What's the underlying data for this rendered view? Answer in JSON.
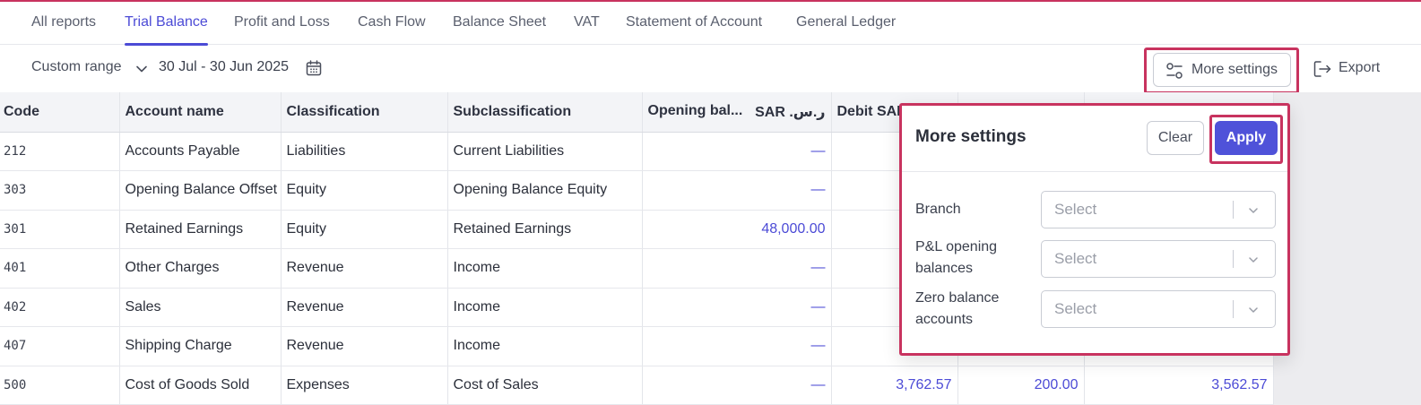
{
  "tabs": [
    "All reports",
    "Trial Balance",
    "Profit and Loss",
    "Cash Flow",
    "Balance Sheet",
    "VAT",
    "Statement of Account",
    "General Ledger"
  ],
  "active_tab": "Trial Balance",
  "toolbar": {
    "range_label": "Custom range",
    "date_range": "30 Jul - 30 Jun 2025",
    "more_settings_label": "More settings",
    "export_label": "Export"
  },
  "table": {
    "headers": {
      "code": "Code",
      "account_name": "Account name",
      "classification": "Classification",
      "subclassification": "Subclassification",
      "opening_balance": "Opening bal...",
      "opening_currency": "SAR .ر.س",
      "debit": "Debit SAR",
      "credit": "",
      "closing": ""
    },
    "rows": [
      {
        "code": "212",
        "account_name": "Accounts Payable",
        "classification": "Liabilities",
        "subclassification": "Current Liabilities",
        "opening_balance": "—",
        "debit": "",
        "credit": "",
        "closing": ""
      },
      {
        "code": "303",
        "account_name": "Opening Balance Offset",
        "classification": "Equity",
        "subclassification": "Opening Balance Equity",
        "opening_balance": "—",
        "debit": "",
        "credit": "",
        "closing": ""
      },
      {
        "code": "301",
        "account_name": "Retained Earnings",
        "classification": "Equity",
        "subclassification": "Retained Earnings",
        "opening_balance": "48,000.00",
        "debit": "",
        "credit": "",
        "closing": ""
      },
      {
        "code": "401",
        "account_name": "Other Charges",
        "classification": "Revenue",
        "subclassification": "Income",
        "opening_balance": "—",
        "debit": "",
        "credit": "",
        "closing": ""
      },
      {
        "code": "402",
        "account_name": "Sales",
        "classification": "Revenue",
        "subclassification": "Income",
        "opening_balance": "—",
        "debit": "",
        "credit": "",
        "closing": ""
      },
      {
        "code": "407",
        "account_name": "Shipping Charge",
        "classification": "Revenue",
        "subclassification": "Income",
        "opening_balance": "—",
        "debit": "",
        "credit": "",
        "closing": ""
      },
      {
        "code": "500",
        "account_name": "Cost of Goods Sold",
        "classification": "Expenses",
        "subclassification": "Cost of Sales",
        "opening_balance": "—",
        "debit": "3,762.57",
        "credit": "200.00",
        "closing": "3,562.57"
      }
    ]
  },
  "popover": {
    "title": "More settings",
    "clear_label": "Clear",
    "apply_label": "Apply",
    "fields": [
      {
        "label": "Branch",
        "placeholder": "Select"
      },
      {
        "label": "P&L opening balances",
        "placeholder": "Select"
      },
      {
        "label": "Zero balance accounts",
        "placeholder": "Select"
      }
    ]
  },
  "colors": {
    "accent": "#4c4bd6",
    "highlight": "#c8335f",
    "apply_bg": "#4f52d9"
  }
}
